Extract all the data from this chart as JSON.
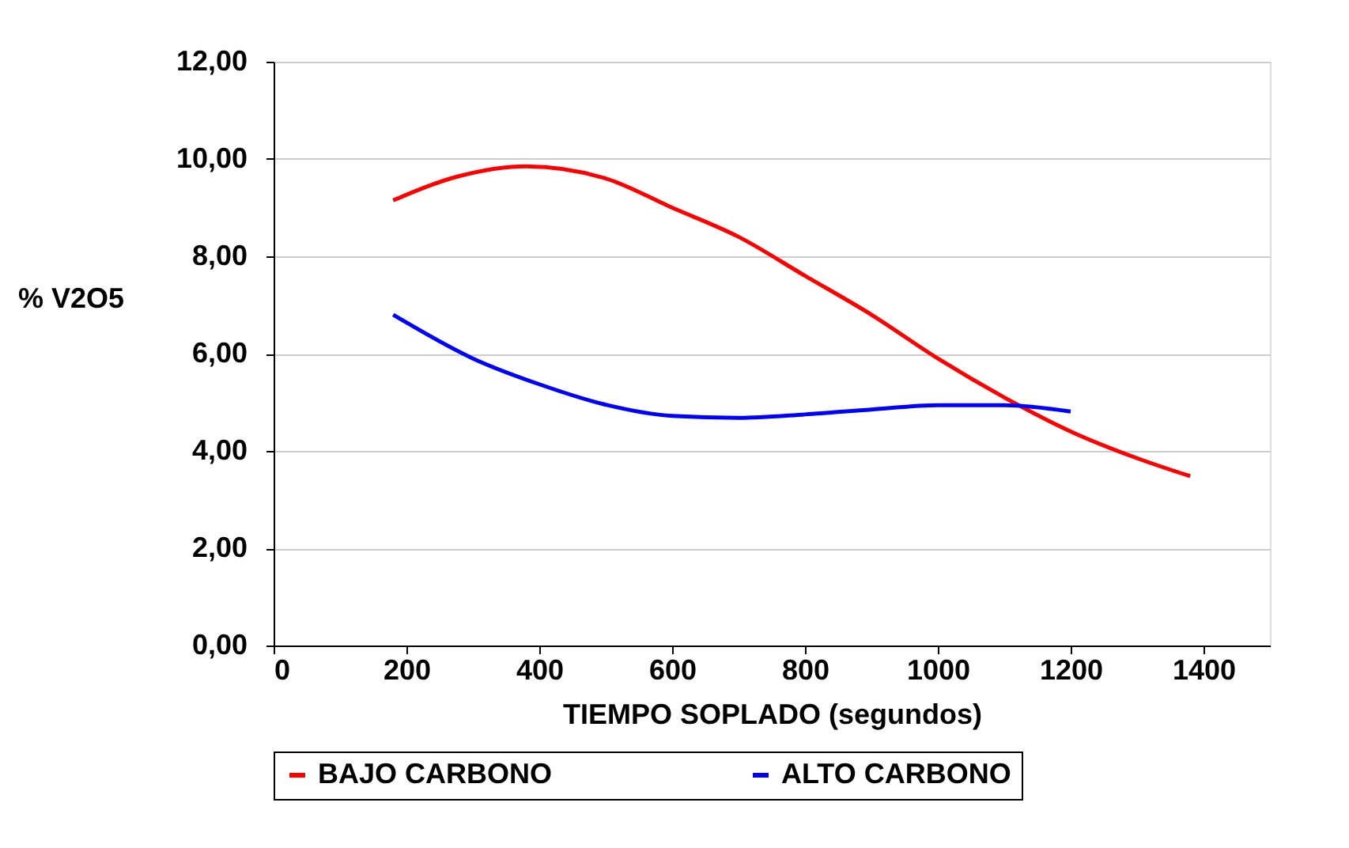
{
  "chart_data": {
    "type": "line",
    "xlabel": "TIEMPO SOPLADO (segundos)",
    "ylabel": "% V2O5",
    "xlim": [
      0,
      1500
    ],
    "xticks": [
      0,
      200,
      400,
      600,
      800,
      1000,
      1200,
      1400
    ],
    "ylim": [
      0,
      12
    ],
    "yticks": [
      {
        "value": 0,
        "label": "0,00"
      },
      {
        "value": 2,
        "label": "2,00"
      },
      {
        "value": 4,
        "label": "4,00"
      },
      {
        "value": 6,
        "label": "6,00"
      },
      {
        "value": 8,
        "label": "8,00"
      },
      {
        "value": 10,
        "label": "10,00"
      },
      {
        "value": 12,
        "label": "12,00"
      }
    ],
    "grid": "y",
    "legend": "bottom",
    "marker": "none",
    "line_style": "solid",
    "series": [
      {
        "name": "BAJO CARBONO",
        "color": "#ff0000",
        "x": [
          180,
          280,
          380,
          500,
          600,
          700,
          800,
          900,
          1000,
          1100,
          1200,
          1300,
          1380
        ],
        "values": [
          9.15,
          9.65,
          9.85,
          9.6,
          9.0,
          8.4,
          7.6,
          6.8,
          5.9,
          5.1,
          4.4,
          3.85,
          3.48
        ]
      },
      {
        "name": "ALTO CARBONO",
        "color": "#0000ff",
        "x": [
          180,
          300,
          400,
          500,
          600,
          700,
          800,
          900,
          1000,
          1100,
          1200
        ],
        "values": [
          6.8,
          5.9,
          5.37,
          4.95,
          4.72,
          4.68,
          4.75,
          4.85,
          4.94,
          4.94,
          4.81
        ]
      }
    ]
  }
}
